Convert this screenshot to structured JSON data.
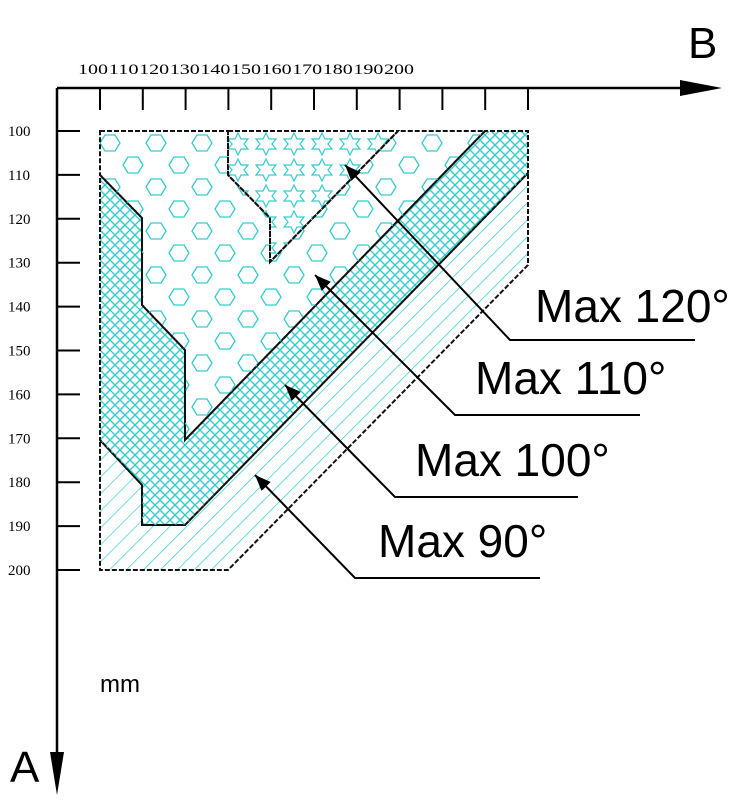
{
  "axes": {
    "x_label": "B",
    "y_label": "A",
    "unit": "mm"
  },
  "x_ticks": [
    100,
    110,
    120,
    130,
    140,
    150,
    160,
    170,
    180,
    190,
    200
  ],
  "y_ticks": [
    100,
    110,
    120,
    130,
    140,
    150,
    160,
    170,
    180,
    190,
    200
  ],
  "regions": [
    {
      "label": "Max 120°"
    },
    {
      "label": "Max 110°"
    },
    {
      "label": "Max 100°"
    },
    {
      "label": "Max 90°"
    }
  ]
}
